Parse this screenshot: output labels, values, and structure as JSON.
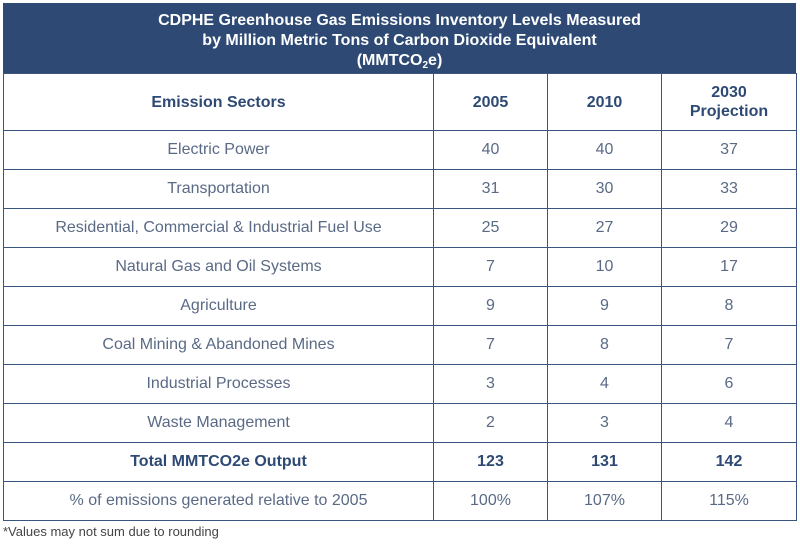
{
  "title": {
    "line1": "CDPHE Greenhouse Gas Emissions Inventory Levels Measured",
    "line2": "by Million Metric Tons of Carbon Dioxide Equivalent",
    "line3_pre": "(MMTCO",
    "line3_sub": "2",
    "line3_post": "e)"
  },
  "headers": [
    "Emission Sectors",
    "2005",
    "2010",
    "2030",
    "Projection"
  ],
  "rows": [
    {
      "sector": "Electric Power",
      "y2005": "40",
      "y2010": "40",
      "y2030": "37"
    },
    {
      "sector": "Transportation",
      "y2005": "31",
      "y2010": "30",
      "y2030": "33"
    },
    {
      "sector": "Residential, Commercial & Industrial Fuel Use",
      "y2005": "25",
      "y2010": "27",
      "y2030": "29"
    },
    {
      "sector": "Natural Gas and Oil Systems",
      "y2005": "7",
      "y2010": "10",
      "y2030": "17"
    },
    {
      "sector": "Agriculture",
      "y2005": "9",
      "y2010": "9",
      "y2030": "8"
    },
    {
      "sector": "Coal Mining & Abandoned Mines",
      "y2005": "7",
      "y2010": "8",
      "y2030": "7"
    },
    {
      "sector": "Industrial Processes",
      "y2005": "3",
      "y2010": "4",
      "y2030": "6"
    },
    {
      "sector": "Waste Management",
      "y2005": "2",
      "y2010": "3",
      "y2030": "4"
    }
  ],
  "total": {
    "sector": "Total MMTCO2e Output",
    "y2005": "123",
    "y2010": "131",
    "y2030": "142"
  },
  "percent": {
    "sector": "% of emissions generated relative to 2005",
    "y2005": "100%",
    "y2010": "107%",
    "y2030": "115%"
  },
  "footnote": "*Values may not sum due to rounding",
  "colors": {
    "header_bg": "#2e4a74",
    "text": "#5a6a85",
    "border": "#3a5580"
  }
}
